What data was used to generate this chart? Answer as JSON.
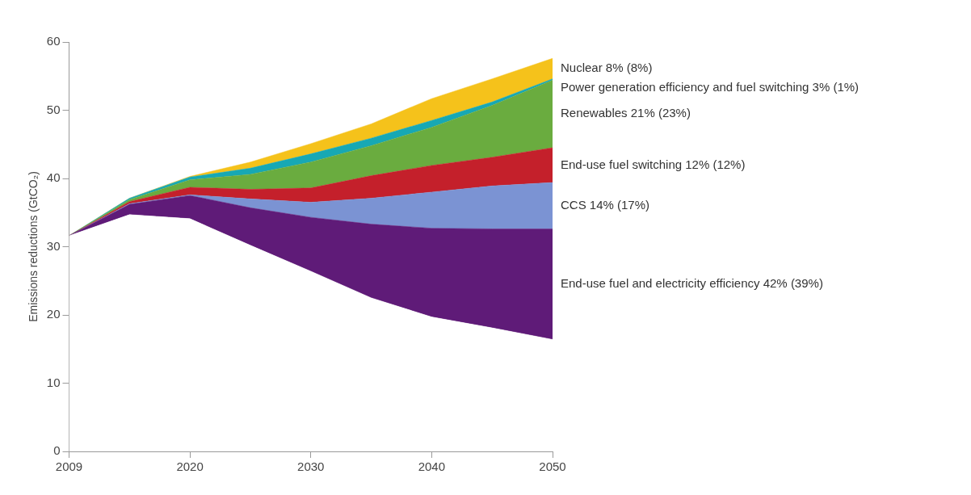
{
  "chart_data": {
    "type": "area",
    "stacked": true,
    "ylabel": "Emissions reductions (GtCO₂)",
    "categories": [
      "2009",
      null,
      "2020",
      null,
      "2030",
      null,
      "2040",
      null,
      "2050"
    ],
    "ylim": [
      0,
      60
    ],
    "yticks": [
      0,
      10,
      20,
      30,
      40,
      50,
      60
    ],
    "grid": false,
    "legend": false,
    "series": [
      {
        "color": "#ffffff",
        "values": [
          31.6,
          34.7,
          34.1,
          30.2,
          26.4,
          22.5,
          19.7,
          18.1,
          16.4
        ]
      },
      {
        "name": "End-use fuel and electricity efficiency 42% (39%)",
        "color": "#5f1b78",
        "values": [
          0,
          1.5,
          3.4,
          5.5,
          7.9,
          10.8,
          13.0,
          14.5,
          16.2
        ]
      },
      {
        "name": "CCS 14% (17%)",
        "color": "#7b93d3",
        "values": [
          0,
          0.1,
          0.1,
          1.3,
          2.2,
          3.8,
          5.3,
          6.3,
          6.8
        ]
      },
      {
        "name": "End-use fuel switching 12% (12%)",
        "color": "#c4202b",
        "values": [
          0,
          0.3,
          1.1,
          1.4,
          2.1,
          3.3,
          3.9,
          4.2,
          5.1
        ]
      },
      {
        "name": "Renewables 21% (23%)",
        "color": "#6aac3f",
        "values": [
          0,
          0.3,
          1.1,
          2.2,
          3.8,
          4.4,
          5.6,
          7.6,
          9.9
        ]
      },
      {
        "name": "Power generation efficiency and fuel switching 3% (1%)",
        "color": "#17a8b4",
        "values": [
          0,
          0.2,
          0.4,
          0.9,
          1.2,
          1.1,
          1.0,
          0.5,
          0.2
        ]
      },
      {
        "name": "Nuclear 8% (8%)",
        "color": "#f5c21b",
        "values": [
          0,
          0,
          0.1,
          0.9,
          1.5,
          2.1,
          3.2,
          3.4,
          3.0
        ]
      }
    ]
  }
}
